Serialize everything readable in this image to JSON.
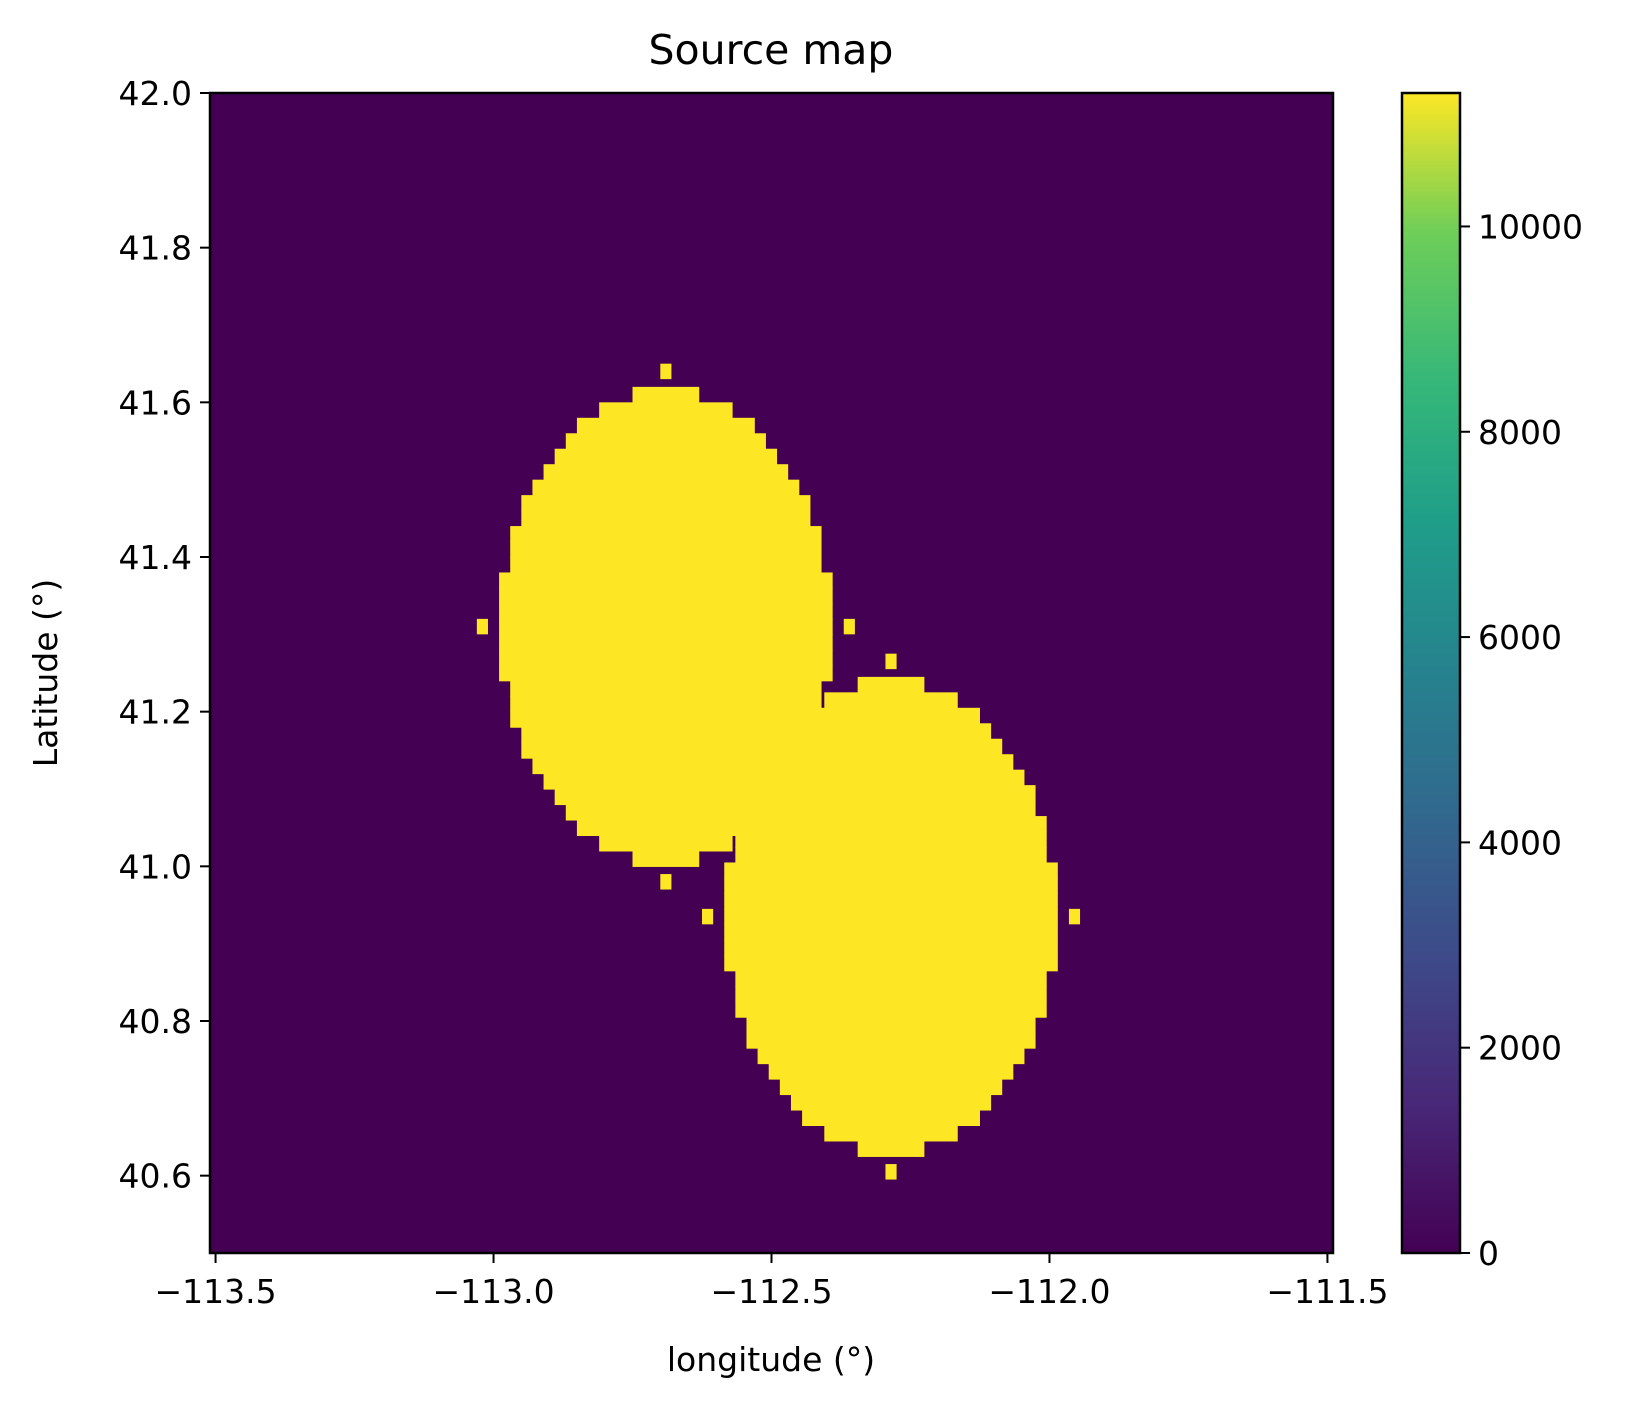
{
  "chart_data": {
    "type": "heatmap",
    "title": "Source map",
    "xlabel": "longitude (°)",
    "ylabel": "Latitude (°)",
    "xlim": [
      -113.51,
      -111.49
    ],
    "ylim": [
      40.5,
      42.0
    ],
    "xticks": [
      {
        "value": -113.5,
        "label": "−113.5"
      },
      {
        "value": -113.0,
        "label": "−113.0"
      },
      {
        "value": -112.5,
        "label": "−112.5"
      },
      {
        "value": -112.0,
        "label": "−112.0"
      },
      {
        "value": -111.5,
        "label": "−111.5"
      }
    ],
    "yticks": [
      {
        "value": 40.6,
        "label": "40.6"
      },
      {
        "value": 40.8,
        "label": "40.8"
      },
      {
        "value": 41.0,
        "label": "41.0"
      },
      {
        "value": 41.2,
        "label": "41.2"
      },
      {
        "value": 41.4,
        "label": "41.4"
      },
      {
        "value": 41.6,
        "label": "41.6"
      },
      {
        "value": 41.8,
        "label": "41.8"
      },
      {
        "value": 42.0,
        "label": "42.0"
      }
    ],
    "background_value": 0,
    "grid_cell_deg": 0.02,
    "sources": [
      {
        "center_lon": -112.69,
        "center_lat": 41.31,
        "radius_deg": 0.31,
        "value": 11300
      },
      {
        "center_lon": -112.285,
        "center_lat": 40.935,
        "radius_deg": 0.31,
        "value": 11300
      }
    ],
    "colorbar": {
      "colormap": "viridis",
      "vmin": 0,
      "vmax": 11300,
      "ticks": [
        {
          "value": 0,
          "label": "0"
        },
        {
          "value": 2000,
          "label": "2000"
        },
        {
          "value": 4000,
          "label": "4000"
        },
        {
          "value": 6000,
          "label": "6000"
        },
        {
          "value": 8000,
          "label": "8000"
        },
        {
          "value": 10000,
          "label": "10000"
        }
      ]
    },
    "grid": false
  }
}
